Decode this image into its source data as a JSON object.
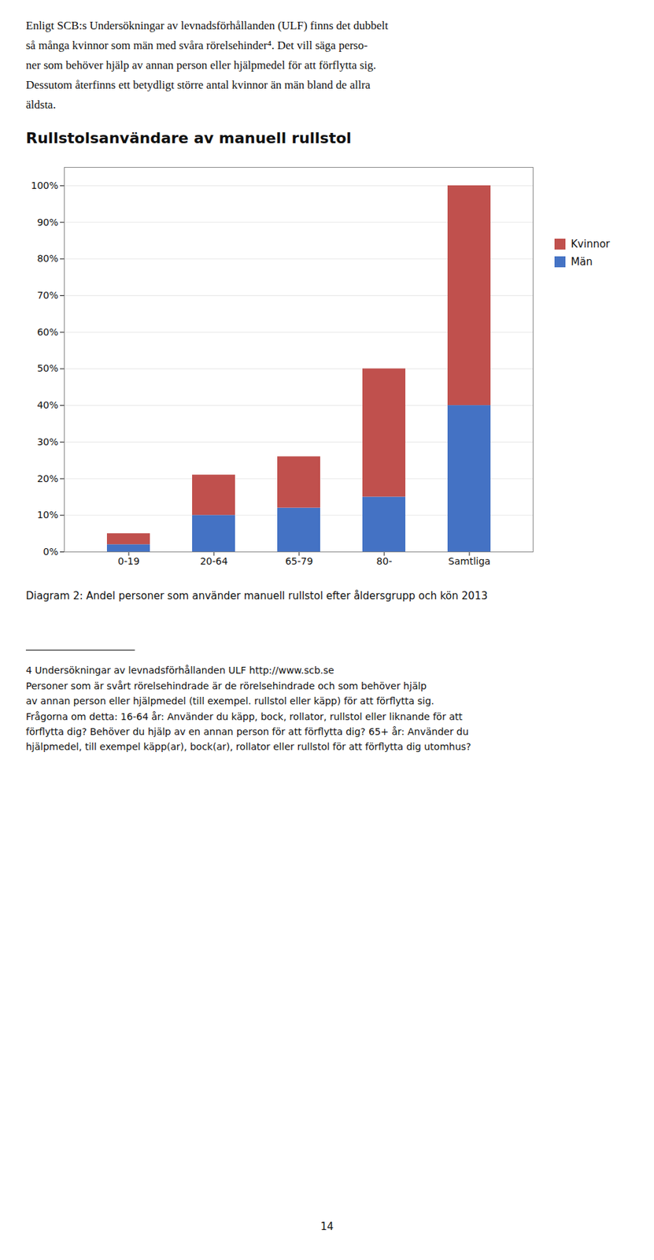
{
  "chart_data": {
    "type": "bar",
    "title": "Rullstolsanvändare av manuell rullstol",
    "categories": [
      "0-19",
      "20-64",
      "65-79",
      "80-",
      "Samtliga"
    ],
    "series": [
      {
        "name": "Män",
        "color": "#4472C4",
        "values": [
          2,
          10,
          12,
          15,
          40
        ]
      },
      {
        "name": "Kvinnor",
        "color": "#C0504D",
        "values": [
          3,
          11,
          14,
          35,
          60
        ]
      }
    ],
    "stacked": true,
    "ylim": [
      0,
      105
    ],
    "yticks": [
      {
        "value": 0,
        "label": "0%"
      },
      {
        "value": 10,
        "label": "10%"
      },
      {
        "value": 20,
        "label": "20%"
      },
      {
        "value": 30,
        "label": "30%"
      },
      {
        "value": 40,
        "label": "40%"
      },
      {
        "value": 50,
        "label": "50%"
      },
      {
        "value": 60,
        "label": "60%"
      },
      {
        "value": 70,
        "label": "70%"
      },
      {
        "value": 80,
        "label": "80%"
      },
      {
        "value": 90,
        "label": "90%"
      },
      {
        "value": 100,
        "label": "100%"
      }
    ],
    "grid": true,
    "legend": "right",
    "annotations": [
      "Enligt SCB:s Undersökningar av levnadsförhållanden (ULF) finns det dubbelt",
      "så många kvinnor som män med svåra rörelsehinder⁴. Det vill säga perso-",
      "ner som behöver hjälp av annan person eller hjälpmedel för att förflytta sig.",
      "Dessutom återfinns ett betydligt större antal kvinnor än män bland de allra",
      "äldsta."
    ],
    "caption": "Diagram 2: Andel personer som använder manuell rullstol efter åldersgrupp och kön 2013",
    "footnotes": [
      "4 Undersökningar av levnadsförhållanden ULF http://www.scb.se",
      "Personer som är svårt rörelsehindrade är de rörelsehindrade och som behöver hjälp",
      "av annan person eller hjälpmedel (till exempel. rullstol eller käpp) för att förflytta sig.",
      "Frågorna om detta: 16-64 år: Använder du käpp, bock, rollator, rullstol eller liknande för att",
      "förflytta dig? Behöver du hjälp av en annan person för att förflytta dig? 65+ år: Använder du",
      "hjälpmedel, till exempel käpp(ar), bock(ar), rollator eller rullstol för att förflytta dig utomhus?"
    ],
    "page_number": "14"
  }
}
